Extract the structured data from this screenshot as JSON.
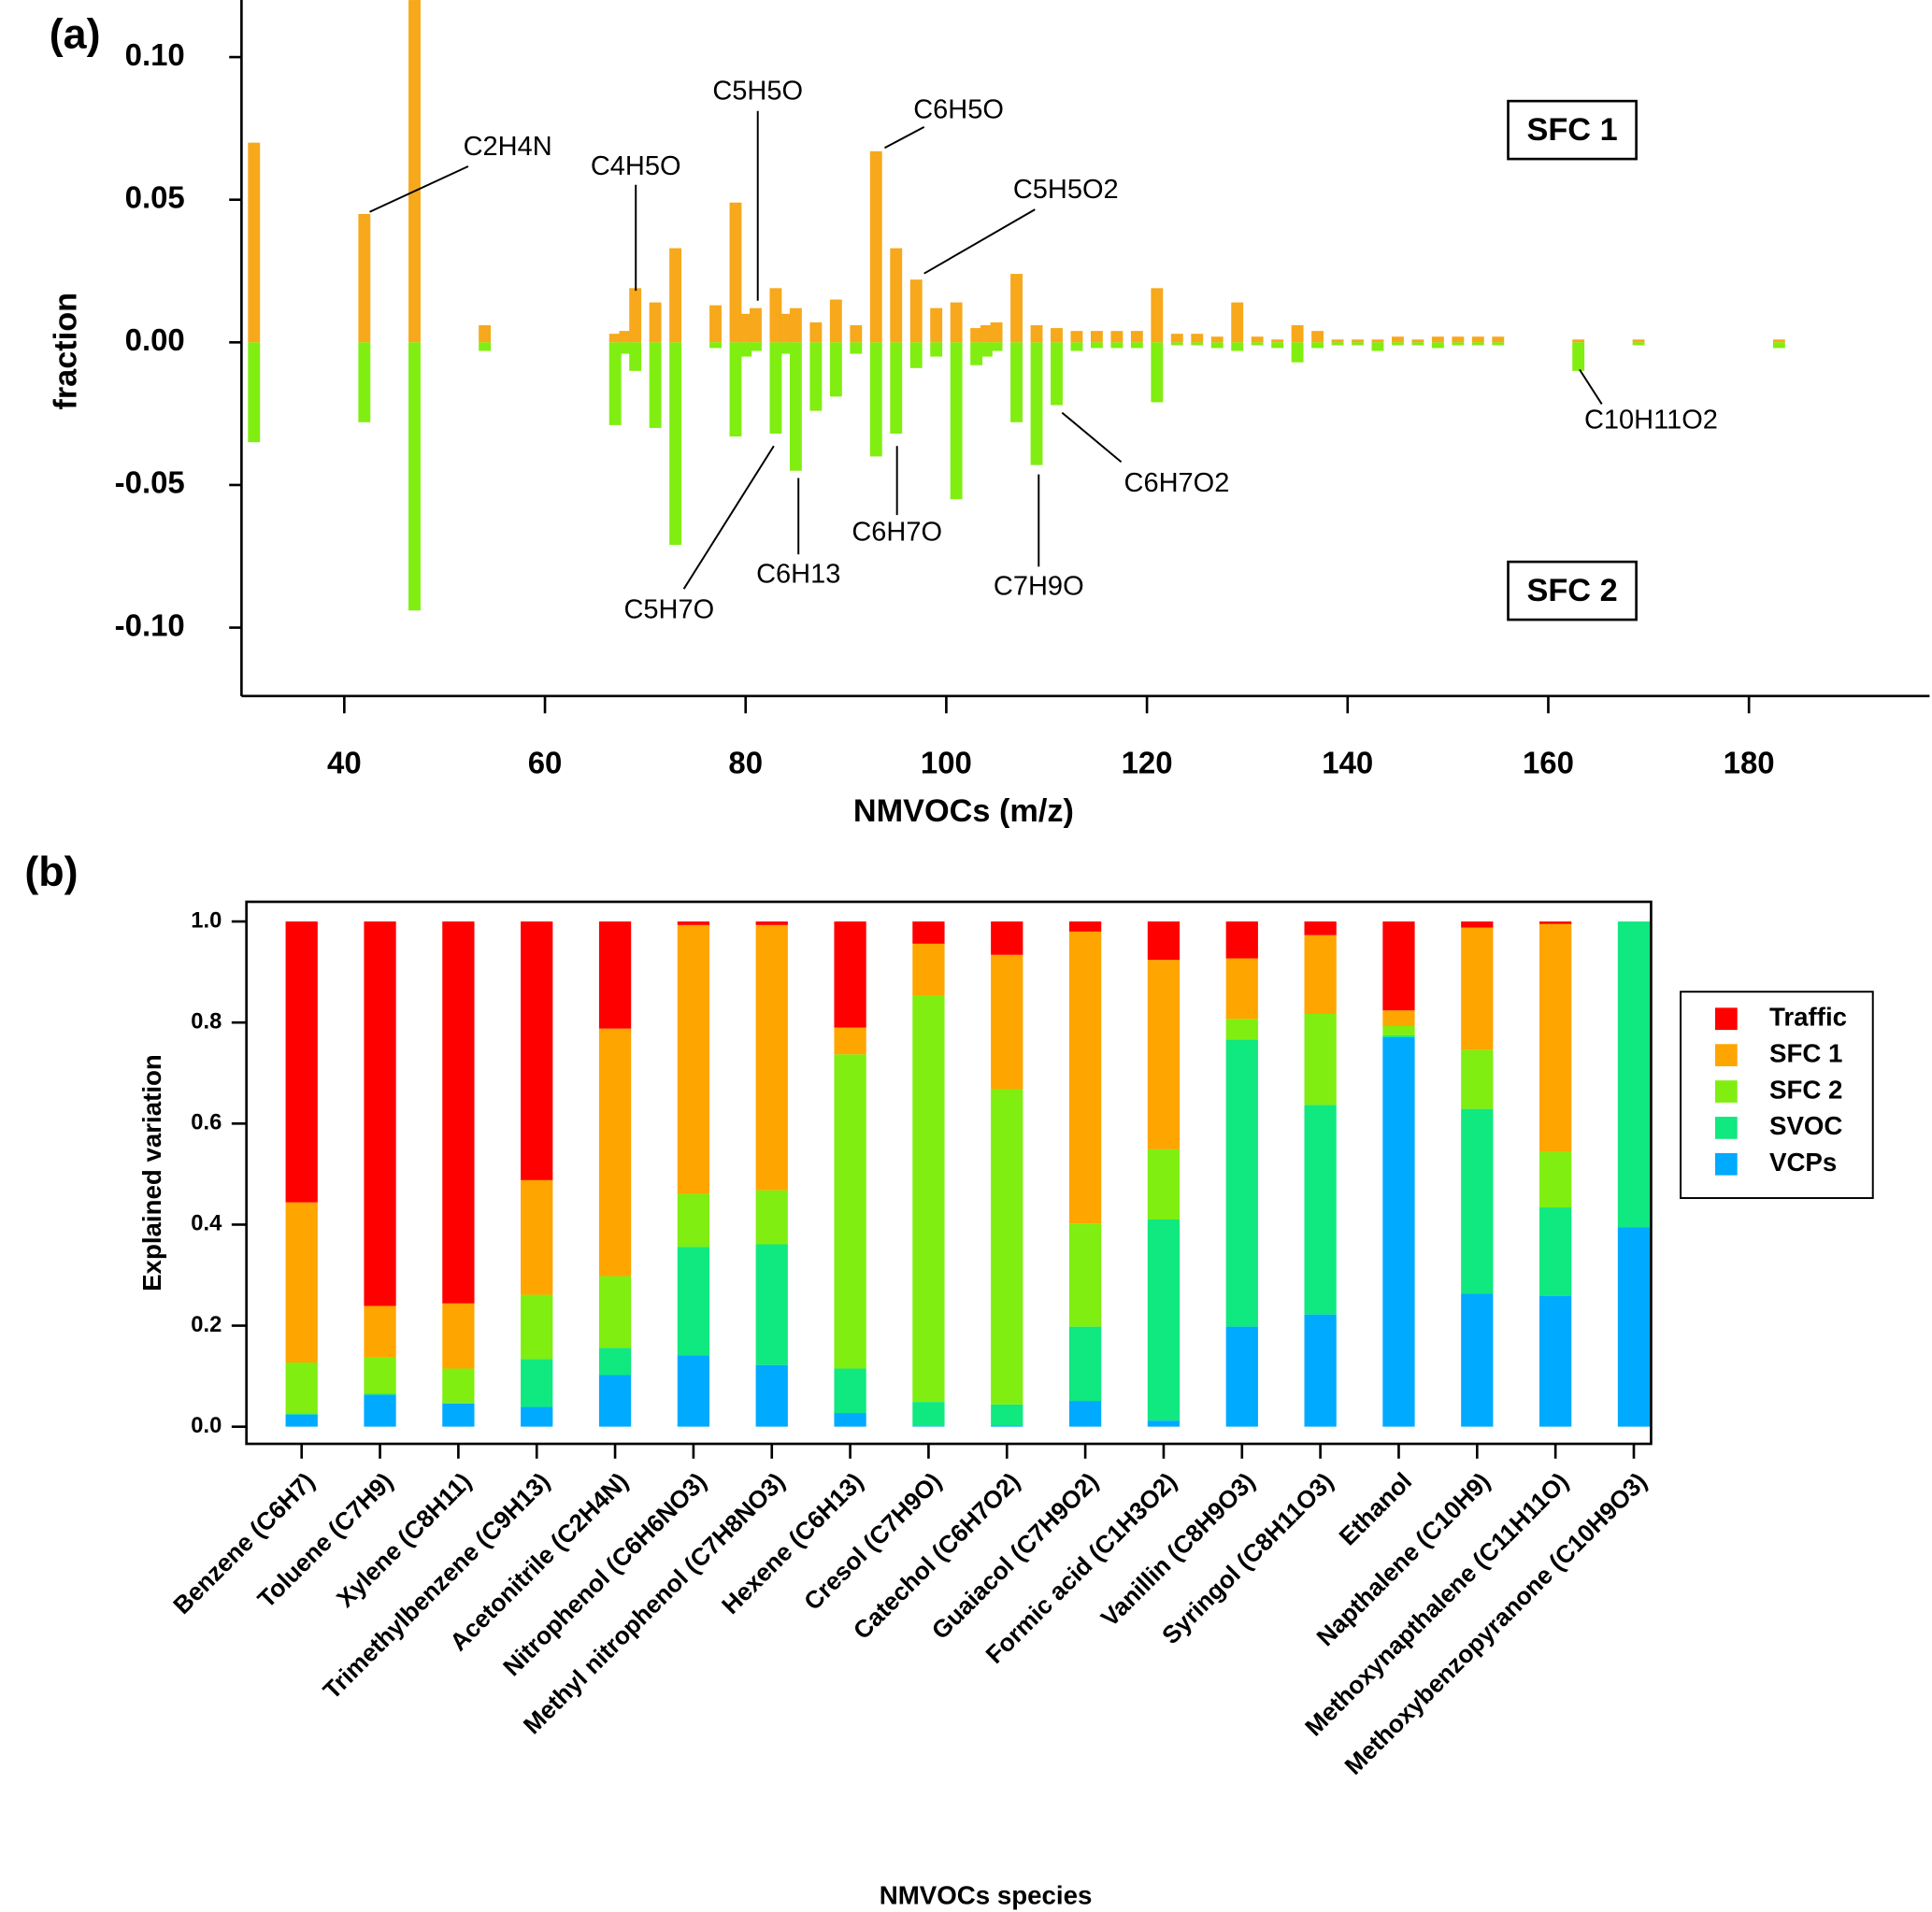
{
  "chart_data": [
    {
      "type": "bar",
      "panel_label": "(a)",
      "x_label": "NMVOCs (m/z)",
      "y_label": "fraction",
      "x": [
        31,
        42,
        47,
        54,
        67,
        68,
        69,
        71,
        73,
        77,
        79,
        80,
        81,
        83,
        84,
        85,
        87,
        89,
        91,
        93,
        95,
        97,
        99,
        101,
        103,
        104,
        105,
        107,
        109,
        111,
        113,
        115,
        117,
        119,
        121,
        123,
        125,
        127,
        129,
        131,
        133,
        135,
        137,
        139,
        141,
        143,
        145,
        147,
        149,
        151,
        153,
        155,
        163,
        169,
        183
      ],
      "series": [
        {
          "name": "SFC 1",
          "color": "#f7a81b",
          "values": [
            0.07,
            0.045,
            0.12,
            0.006,
            0.003,
            0.004,
            0.019,
            0.014,
            0.033,
            0.013,
            0.049,
            0.01,
            0.012,
            0.019,
            0.01,
            0.012,
            0.007,
            0.015,
            0.006,
            0.067,
            0.033,
            0.022,
            0.012,
            0.014,
            0.005,
            0.006,
            0.007,
            0.024,
            0.006,
            0.005,
            0.004,
            0.004,
            0.004,
            0.004,
            0.019,
            0.003,
            0.003,
            0.002,
            0.014,
            0.002,
            0.001,
            0.006,
            0.004,
            0.001,
            0.001,
            0.001,
            0.002,
            0.001,
            0.002,
            0.002,
            0.002,
            0.002,
            0.001,
            0.001,
            0.001
          ]
        },
        {
          "name": "SFC 2",
          "color": "#80ee10",
          "values": [
            -0.035,
            -0.028,
            -0.094,
            -0.003,
            -0.029,
            -0.004,
            -0.01,
            -0.03,
            -0.071,
            -0.002,
            -0.033,
            -0.005,
            -0.003,
            -0.032,
            -0.004,
            -0.045,
            -0.024,
            -0.019,
            -0.004,
            -0.04,
            -0.032,
            -0.009,
            -0.005,
            -0.055,
            -0.008,
            -0.005,
            -0.003,
            -0.028,
            -0.043,
            -0.022,
            -0.003,
            -0.002,
            -0.002,
            -0.002,
            -0.021,
            -0.001,
            -0.001,
            -0.002,
            -0.003,
            -0.001,
            -0.002,
            -0.007,
            -0.002,
            -0.001,
            -0.001,
            -0.003,
            -0.001,
            -0.001,
            -0.002,
            -0.001,
            -0.001,
            -0.001,
            -0.01,
            -0.001,
            -0.002
          ]
        }
      ],
      "xlim": [
        30,
        198
      ],
      "xticks": [
        40,
        60,
        80,
        100,
        120,
        140,
        160,
        180
      ],
      "ylim": [
        -0.124,
        0.12
      ],
      "yticks": [
        {
          "value": 0.1,
          "label": "0.10"
        },
        {
          "value": 0.05,
          "label": "0.05"
        },
        {
          "value": 0,
          "label": "0.00"
        },
        {
          "value": -0.05,
          "label": "-0.05"
        },
        {
          "value": -0.1,
          "label": "-0.10"
        }
      ],
      "annotations": [
        "C2H4N",
        "C4H5O",
        "C5H5O",
        "C6H5O",
        "C5H5O2",
        "C10H11O2",
        "C6H7O2",
        "C7H9O",
        "C6H7O",
        "C6H13",
        "C5H7O"
      ]
    },
    {
      "type": "stacked_bar",
      "panel_label": "(b)",
      "x_label": "NMVOCs species",
      "y_label": "Explained variation",
      "categories": [
        "Benzene (C6H7)",
        "Toluene (C7H9)",
        "Xylene (C8H11)",
        "Trimethylbenzene (C9H13)",
        "Acetonitrile (C2H4N)",
        "Nitrophenol (C6H6NO3)",
        "Methyl nitrophenol (C7H8NO3)",
        "Hexene (C6H13)",
        "Cresol (C7H9O)",
        "Catechol (C6H7O2)",
        "Guaiacol (C7H9O2)",
        "Formic acid (C1H3O2)",
        "Vanillin (C8H9O3)",
        "Syringol (C8H11O3)",
        "Ethanol",
        "Napthalene (C10H9)",
        "Methoxynapthalene (C11H11O)",
        "Methoxybenzopyranone (C10H9O3)"
      ],
      "series": [
        {
          "name": "VCPs",
          "color": "#00aaff",
          "values": [
            0.024,
            0.063,
            0.046,
            0.039,
            0.102,
            0.141,
            0.122,
            0.027,
            0.001,
            0.002,
            0.051,
            0.012,
            0.198,
            0.222,
            0.771,
            0.263,
            0.259,
            0.395
          ]
        },
        {
          "name": "SVOC",
          "color": "#10e880",
          "values": [
            0.002,
            0.002,
            0.001,
            0.095,
            0.054,
            0.215,
            0.239,
            0.088,
            0.048,
            0.042,
            0.147,
            0.398,
            0.568,
            0.415,
            0.004,
            0.366,
            0.175,
            0.605
          ]
        },
        {
          "name": "SFC 2",
          "color": "#80ee10",
          "values": [
            0.101,
            0.072,
            0.068,
            0.127,
            0.142,
            0.105,
            0.107,
            0.622,
            0.805,
            0.624,
            0.204,
            0.139,
            0.041,
            0.18,
            0.018,
            0.117,
            0.11,
            0
          ]
        },
        {
          "name": "SFC 1",
          "color": "#ffa500",
          "values": [
            0.317,
            0.102,
            0.129,
            0.227,
            0.49,
            0.532,
            0.525,
            0.053,
            0.102,
            0.266,
            0.578,
            0.375,
            0.12,
            0.156,
            0.031,
            0.242,
            0.451,
            0
          ]
        },
        {
          "name": "Traffic",
          "color": "#ff0000",
          "values": [
            0.556,
            0.761,
            0.756,
            0.512,
            0.212,
            0.007,
            0.007,
            0.21,
            0.044,
            0.066,
            0.02,
            0.076,
            0.073,
            0.027,
            0.176,
            0.012,
            0.005,
            0
          ]
        }
      ],
      "ylim": [
        -0.034,
        1.039
      ],
      "yticks": [
        {
          "value": 0,
          "label": "0.0"
        },
        0.2,
        0.4,
        0.6,
        0.8,
        {
          "value": 1,
          "label": "1.0"
        }
      ],
      "legend": "right"
    }
  ]
}
